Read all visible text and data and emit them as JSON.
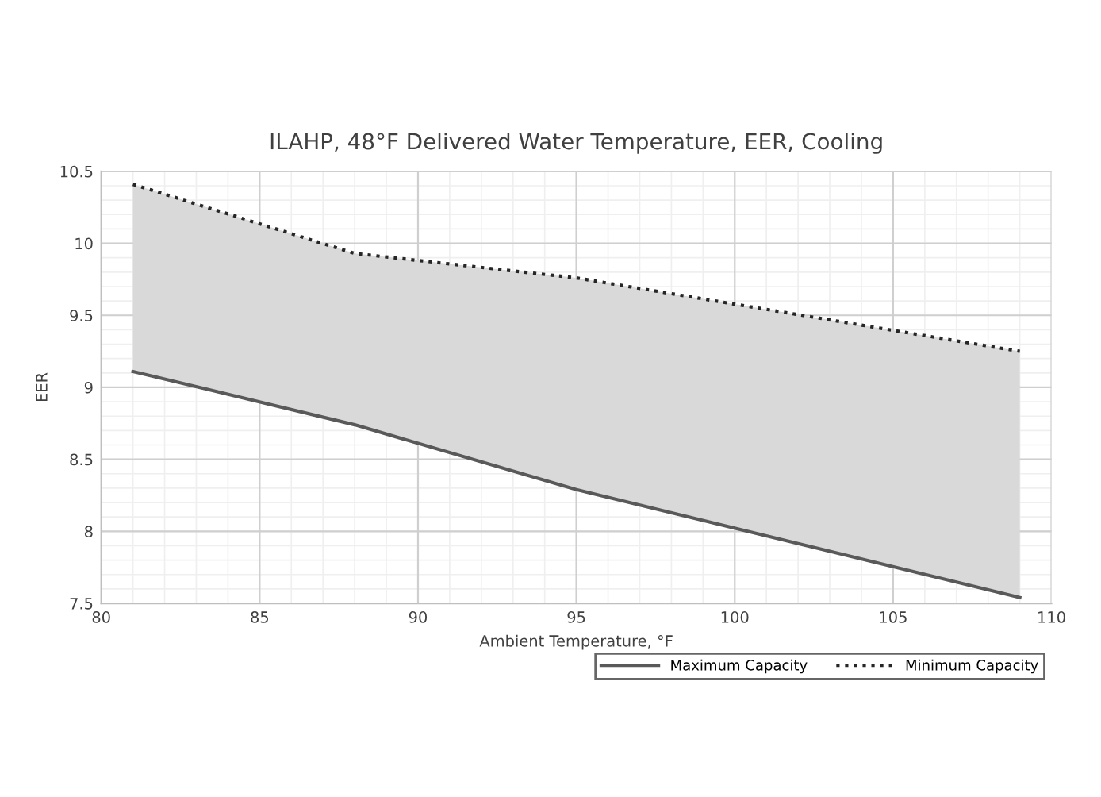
{
  "chart_data": {
    "type": "line",
    "title": "ILAHP, 48°F Delivered Water Temperature, EER, Cooling",
    "xlabel": "Ambient Temperature, °F",
    "ylabel": "EER",
    "x": [
      81,
      88,
      95,
      109
    ],
    "series": [
      {
        "name": "Maximum Capacity",
        "color": "#595959",
        "line_style": "solid",
        "values": [
          9.11,
          8.74,
          8.29,
          7.54
        ],
        "lower": [
          9.11,
          8.74,
          8.29,
          7.54
        ],
        "upper": [
          10.41,
          9.93,
          9.76,
          9.25
        ]
      },
      {
        "name": "Minimum Capacity",
        "color": "#262626",
        "line_style": "dotted",
        "values": [
          10.41,
          9.93,
          9.76,
          9.25
        ]
      }
    ],
    "xlim": [
      80,
      110
    ],
    "xticks": [
      80,
      85,
      90,
      95,
      100,
      105,
      110
    ],
    "ylim": [
      7.5,
      10.5
    ],
    "yticks": [
      7.5,
      8,
      8.5,
      9,
      9.5,
      10,
      10.5
    ],
    "grid": true,
    "legend": "bottom right",
    "marker": "none"
  }
}
